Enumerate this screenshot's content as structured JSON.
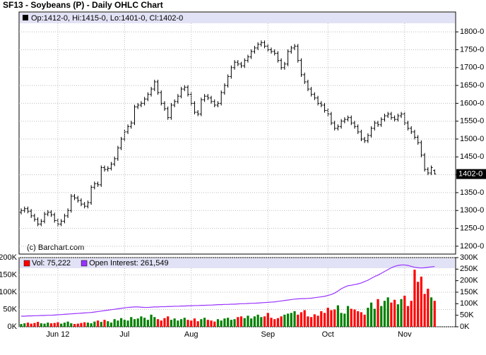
{
  "chart_data": [
    {
      "type": "ohlc",
      "title": "SF13 - Soybeans (P) - Daily OHLC Chart",
      "legend": "Op:1412-0, Hi:1415-0, Lo:1401-0, Cl:1402-0",
      "credit": "(c) Barchart.com",
      "last_label": "1402-0",
      "color": "#000000",
      "grid": true,
      "ylim": [
        1178,
        1824
      ],
      "yticks": [
        {
          "value": 1200,
          "label": "1200-0"
        },
        {
          "value": 1250,
          "label": "1250-0"
        },
        {
          "value": 1300,
          "label": "1300-0"
        },
        {
          "value": 1350,
          "label": "1350-0"
        },
        {
          "value": 1400,
          "label": "1400-0"
        },
        {
          "value": 1450,
          "label": "1450-0"
        },
        {
          "value": 1500,
          "label": "1500-0"
        },
        {
          "value": 1550,
          "label": "1550-0"
        },
        {
          "value": 1600,
          "label": "1600-0"
        },
        {
          "value": 1650,
          "label": "1650-0"
        },
        {
          "value": 1700,
          "label": "1700-0"
        },
        {
          "value": 1750,
          "label": "1750-0"
        },
        {
          "value": 1800,
          "label": "1800-0"
        }
      ],
      "open": [
        1295,
        1300,
        1305,
        1298,
        1285,
        1275,
        1262,
        1270,
        1290,
        1295,
        1288,
        1272,
        1262,
        1270,
        1285,
        1300,
        1340,
        1335,
        1328,
        1318,
        1312,
        1322,
        1365,
        1375,
        1372,
        1420,
        1415,
        1418,
        1430,
        1445,
        1475,
        1500,
        1520,
        1535,
        1545,
        1590,
        1595,
        1600,
        1612,
        1625,
        1640,
        1660,
        1630,
        1600,
        1585,
        1560,
        1595,
        1605,
        1620,
        1640,
        1645,
        1625,
        1600,
        1575,
        1570,
        1610,
        1620,
        1615,
        1605,
        1595,
        1600,
        1630,
        1650,
        1675,
        1700,
        1715,
        1710,
        1705,
        1720,
        1730,
        1745,
        1755,
        1765,
        1770,
        1760,
        1750,
        1745,
        1740,
        1720,
        1700,
        1710,
        1745,
        1755,
        1760,
        1720,
        1680,
        1660,
        1640,
        1625,
        1615,
        1600,
        1595,
        1580,
        1570,
        1545,
        1530,
        1535,
        1550,
        1555,
        1560,
        1545,
        1535,
        1520,
        1500,
        1495,
        1510,
        1530,
        1545,
        1540,
        1555,
        1565,
        1570,
        1560,
        1555,
        1565,
        1570,
        1545,
        1530,
        1520,
        1505,
        1490,
        1455,
        1415,
        1405,
        1412
      ],
      "high": [
        1306,
        1311,
        1311,
        1304,
        1291,
        1281,
        1276,
        1296,
        1301,
        1301,
        1294,
        1278,
        1276,
        1291,
        1306,
        1346,
        1346,
        1341,
        1334,
        1324,
        1328,
        1371,
        1381,
        1381,
        1426,
        1426,
        1424,
        1436,
        1451,
        1481,
        1506,
        1526,
        1541,
        1551,
        1596,
        1601,
        1606,
        1618,
        1631,
        1646,
        1666,
        1666,
        1636,
        1606,
        1591,
        1601,
        1611,
        1626,
        1646,
        1651,
        1651,
        1631,
        1606,
        1581,
        1616,
        1626,
        1626,
        1621,
        1611,
        1606,
        1636,
        1656,
        1681,
        1706,
        1721,
        1721,
        1716,
        1726,
        1736,
        1751,
        1761,
        1771,
        1776,
        1776,
        1766,
        1756,
        1751,
        1746,
        1726,
        1716,
        1751,
        1761,
        1766,
        1766,
        1726,
        1686,
        1666,
        1646,
        1631,
        1621,
        1606,
        1601,
        1586,
        1576,
        1551,
        1541,
        1556,
        1561,
        1566,
        1566,
        1551,
        1541,
        1526,
        1506,
        1516,
        1536,
        1551,
        1551,
        1561,
        1571,
        1576,
        1576,
        1566,
        1571,
        1576,
        1576,
        1551,
        1536,
        1526,
        1511,
        1496,
        1461,
        1421,
        1426,
        1415
      ],
      "low": [
        1289,
        1294,
        1292,
        1279,
        1269,
        1256,
        1256,
        1264,
        1284,
        1282,
        1266,
        1256,
        1256,
        1264,
        1279,
        1294,
        1329,
        1322,
        1312,
        1306,
        1306,
        1316,
        1359,
        1366,
        1366,
        1409,
        1409,
        1412,
        1424,
        1439,
        1469,
        1494,
        1514,
        1529,
        1539,
        1584,
        1589,
        1594,
        1606,
        1619,
        1634,
        1624,
        1594,
        1579,
        1554,
        1554,
        1589,
        1599,
        1614,
        1634,
        1619,
        1594,
        1569,
        1564,
        1564,
        1604,
        1609,
        1599,
        1589,
        1589,
        1594,
        1624,
        1644,
        1669,
        1694,
        1704,
        1699,
        1699,
        1714,
        1724,
        1739,
        1749,
        1759,
        1754,
        1744,
        1739,
        1734,
        1714,
        1694,
        1694,
        1704,
        1739,
        1749,
        1714,
        1674,
        1654,
        1634,
        1619,
        1609,
        1594,
        1589,
        1574,
        1564,
        1539,
        1524,
        1524,
        1529,
        1544,
        1549,
        1539,
        1529,
        1514,
        1494,
        1489,
        1489,
        1504,
        1524,
        1534,
        1534,
        1549,
        1559,
        1554,
        1549,
        1549,
        1559,
        1539,
        1524,
        1514,
        1499,
        1484,
        1449,
        1409,
        1399,
        1399,
        1401
      ],
      "close": [
        1300,
        1305,
        1298,
        1285,
        1275,
        1262,
        1270,
        1290,
        1295,
        1288,
        1272,
        1262,
        1270,
        1285,
        1300,
        1340,
        1335,
        1328,
        1318,
        1312,
        1322,
        1365,
        1375,
        1372,
        1420,
        1415,
        1418,
        1430,
        1445,
        1475,
        1500,
        1520,
        1535,
        1545,
        1590,
        1595,
        1600,
        1612,
        1625,
        1640,
        1660,
        1630,
        1600,
        1585,
        1560,
        1595,
        1605,
        1620,
        1640,
        1645,
        1625,
        1600,
        1575,
        1570,
        1610,
        1620,
        1615,
        1605,
        1595,
        1600,
        1630,
        1650,
        1675,
        1700,
        1715,
        1710,
        1705,
        1720,
        1730,
        1745,
        1755,
        1765,
        1770,
        1760,
        1750,
        1745,
        1740,
        1720,
        1700,
        1710,
        1745,
        1755,
        1760,
        1720,
        1680,
        1660,
        1640,
        1625,
        1615,
        1600,
        1595,
        1580,
        1570,
        1545,
        1530,
        1535,
        1550,
        1555,
        1560,
        1545,
        1535,
        1520,
        1500,
        1495,
        1510,
        1530,
        1545,
        1540,
        1555,
        1565,
        1570,
        1560,
        1555,
        1565,
        1570,
        1545,
        1530,
        1520,
        1505,
        1490,
        1455,
        1415,
        1405,
        1420,
        1402
      ]
    },
    {
      "type": "bar",
      "grid": true,
      "up_color": "#008000",
      "categories": [
        null,
        null,
        null,
        null,
        null,
        null,
        null,
        null,
        null,
        null,
        null,
        "Jun 12",
        null,
        null,
        null,
        null,
        null,
        null,
        null,
        null,
        null,
        null,
        null,
        null,
        null,
        null,
        null,
        null,
        null,
        null,
        null,
        "Jul",
        null,
        null,
        null,
        null,
        null,
        null,
        null,
        null,
        null,
        null,
        null,
        null,
        null,
        null,
        null,
        null,
        null,
        null,
        null,
        "Aug",
        null,
        null,
        null,
        null,
        null,
        null,
        null,
        null,
        null,
        null,
        null,
        null,
        null,
        null,
        null,
        null,
        null,
        null,
        null,
        null,
        null,
        null,
        "Sep",
        null,
        null,
        null,
        null,
        null,
        null,
        null,
        null,
        null,
        null,
        null,
        null,
        null,
        null,
        null,
        null,
        null,
        "Oct",
        null,
        null,
        null,
        null,
        null,
        null,
        null,
        null,
        null,
        null,
        null,
        null,
        null,
        null,
        null,
        null,
        null,
        null,
        null,
        null,
        null,
        null,
        "Nov",
        null,
        null,
        null,
        null,
        null,
        null,
        null,
        null,
        null
      ],
      "ylim": [
        0,
        200
      ],
      "yticks": [
        {
          "value": 0,
          "label": "0K"
        },
        {
          "value": 50,
          "label": "50K"
        },
        {
          "value": 100,
          "label": "100K"
        },
        {
          "value": 150,
          "label": "150K"
        },
        {
          "value": 200,
          "label": "200K"
        }
      ],
      "y2lim": [
        0,
        300
      ],
      "y2ticks": [
        {
          "value": 0,
          "label": "0K"
        },
        {
          "value": 50,
          "label": "50K"
        },
        {
          "value": 100,
          "label": "100K"
        },
        {
          "value": 150,
          "label": "150K"
        },
        {
          "value": 200,
          "label": "200K"
        },
        {
          "value": 250,
          "label": "250K"
        },
        {
          "value": 300,
          "label": "300K"
        }
      ],
      "series": [
        {
          "name": "Vol: 75,222",
          "color": "#ff0000",
          "values": [
            8,
            10,
            12,
            9,
            11,
            14,
            10,
            9,
            12,
            10,
            11,
            13,
            9,
            12,
            15,
            10,
            8,
            9,
            11,
            13,
            12,
            10,
            15,
            18,
            14,
            20,
            16,
            12,
            22,
            18,
            25,
            20,
            18,
            28,
            22,
            24,
            30,
            26,
            20,
            35,
            28,
            22,
            18,
            25,
            30,
            20,
            24,
            18,
            22,
            26,
            20,
            18,
            24,
            16,
            22,
            26,
            20,
            18,
            15,
            22,
            18,
            24,
            26,
            20,
            22,
            28,
            30,
            25,
            32,
            24,
            30,
            35,
            28,
            30,
            40,
            26,
            22,
            25,
            30,
            35,
            38,
            40,
            45,
            35,
            42,
            48,
            30,
            28,
            36,
            32,
            45,
            40,
            55,
            48,
            50,
            62,
            40,
            38,
            60,
            52,
            50,
            45,
            42,
            35,
            55,
            70,
            52,
            80,
            60,
            75,
            85,
            70,
            78,
            65,
            80,
            90,
            60,
            75,
            165,
            130,
            145,
            95,
            110,
            85,
            75
          ]
        },
        {
          "name": "Open Interest: 261,549",
          "color": "#9933ff",
          "axis": "y2",
          "values": [
            46,
            46,
            47,
            47,
            48,
            48,
            49,
            49,
            50,
            50,
            51,
            52,
            53,
            54,
            55,
            56,
            57,
            58,
            59,
            60,
            61,
            62,
            64,
            66,
            68,
            70,
            72,
            74,
            76,
            78,
            80,
            82,
            84,
            85,
            86,
            86,
            85,
            84,
            84,
            85,
            86,
            86,
            87,
            87,
            88,
            88,
            89,
            89,
            90,
            90,
            91,
            91,
            92,
            92,
            93,
            93,
            94,
            94,
            95,
            96,
            96,
            97,
            97,
            98,
            98,
            99,
            100,
            100,
            101,
            102,
            102,
            103,
            104,
            105,
            106,
            107,
            108,
            110,
            112,
            114,
            116,
            118,
            120,
            121,
            122,
            122,
            123,
            124,
            126,
            128,
            130,
            132,
            136,
            140,
            146,
            155,
            165,
            172,
            178,
            180,
            183,
            186,
            190,
            196,
            202,
            210,
            218,
            224,
            232,
            240,
            248,
            256,
            262,
            266,
            268,
            268,
            266,
            262,
            258,
            256,
            255,
            256,
            258,
            260,
            261.5
          ]
        }
      ]
    }
  ]
}
